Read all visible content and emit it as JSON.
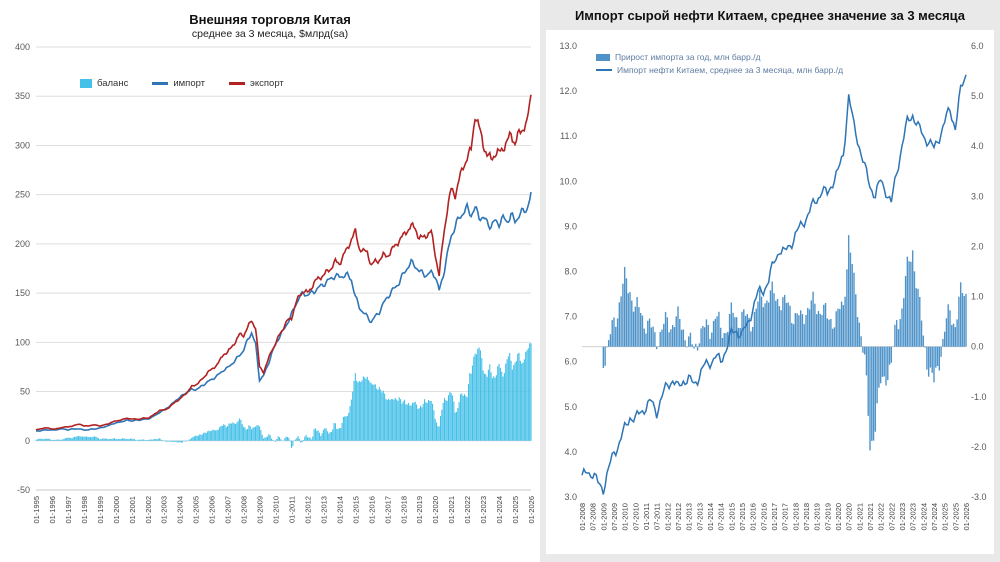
{
  "page": {
    "background": "#ffffff",
    "right_panel_background": "#e9e9e9"
  },
  "chart_data": [
    {
      "type": "bar+line",
      "title": "Внешняя торговля Китая",
      "subtitle": "среднее за 3 месяца, $млрд(sa)",
      "x_start": "01-1995",
      "x_end": "01-2026",
      "x_resolution_of_values": "quarterly",
      "ylim": [
        -50,
        400
      ],
      "y_tick_step": 50,
      "grid": "horizontal",
      "legend_position": "top-left-inside",
      "x_tick_labels": [
        "01-1995",
        "01-1996",
        "01-1997",
        "01-1998",
        "01-1999",
        "01-2000",
        "01-2001",
        "01-2002",
        "01-2003",
        "01-2004",
        "01-2005",
        "01-2006",
        "01-2007",
        "01-2008",
        "01-2009",
        "01-2010",
        "01-2011",
        "01-2012",
        "01-2013",
        "01-2014",
        "01-2015",
        "01-2016",
        "01-2017",
        "01-2018",
        "01-2019",
        "01-2020",
        "01-2021",
        "01-2022",
        "01-2023",
        "01-2024",
        "01-2025",
        "01-2026"
      ],
      "series": [
        {
          "name": "баланс",
          "type": "bar",
          "color": "#45c0e8",
          "rule": "balance = экспорт - импорт"
        },
        {
          "name": "импорт",
          "type": "line",
          "color": "#2e75b6",
          "values": [
            10,
            10,
            11,
            11,
            11,
            11,
            12,
            12,
            11,
            12,
            12,
            12,
            11,
            11,
            12,
            12,
            13,
            14,
            15,
            17,
            18,
            19,
            20,
            21,
            20,
            21,
            21,
            22,
            22,
            24,
            26,
            29,
            31,
            34,
            37,
            41,
            44,
            47,
            50,
            52,
            52,
            54,
            57,
            60,
            62,
            65,
            68,
            72,
            74,
            78,
            82,
            87,
            92,
            102,
            110,
            98,
            62,
            66,
            76,
            88,
            98,
            106,
            112,
            120,
            128,
            138,
            146,
            150,
            148,
            150,
            153,
            156,
            159,
            162,
            165,
            168,
            166,
            168,
            168,
            164,
            146,
            136,
            130,
            126,
            121,
            126,
            131,
            139,
            146,
            151,
            156,
            161,
            169,
            176,
            181,
            178,
            172,
            170,
            168,
            171,
            168,
            152,
            168,
            188,
            208,
            218,
            226,
            232,
            236,
            230,
            236,
            228,
            226,
            222,
            218,
            223,
            221,
            226,
            223,
            229,
            223,
            229,
            233,
            236,
            249
          ]
        },
        {
          "name": "экспорт",
          "type": "line",
          "color": "#b22222",
          "values": [
            11,
            12,
            13,
            13,
            12,
            12,
            13,
            14,
            14,
            15,
            16,
            17,
            15,
            15,
            16,
            16,
            15,
            16,
            17,
            19,
            20,
            21,
            22,
            23,
            22,
            22,
            22,
            23,
            23,
            25,
            28,
            31,
            31,
            33,
            36,
            40,
            42,
            46,
            50,
            55,
            57,
            60,
            64,
            70,
            72,
            76,
            81,
            88,
            90,
            95,
            101,
            108,
            107,
            115,
            122,
            115,
            75,
            70,
            80,
            92,
            98,
            108,
            115,
            122,
            125,
            138,
            148,
            152,
            150,
            156,
            162,
            166,
            168,
            172,
            176,
            182,
            180,
            188,
            195,
            205,
            212,
            196,
            192,
            192,
            178,
            182,
            184,
            188,
            188,
            193,
            198,
            204,
            208,
            214,
            218,
            216,
            206,
            206,
            210,
            212,
            190,
            168,
            205,
            235,
            255,
            250,
            265,
            278,
            288,
            295,
            332,
            318,
            302,
            290,
            286,
            292,
            292,
            298,
            303,
            312,
            302,
            312,
            318,
            322,
            352
          ]
        }
      ]
    },
    {
      "type": "bar+line",
      "title": "Импорт сырой нефти Китаем, среднее значение за 3 месяца",
      "x_start": "01-2008",
      "x_end": "01-2026",
      "x_resolution_of_values": "quarterly",
      "left_ylim": [
        3.0,
        13.0
      ],
      "right_ylim": [
        -3.0,
        6.0
      ],
      "y_tick_step": 1.0,
      "grid": "none",
      "legend_position": "top-left-inside",
      "x_tick_labels": [
        "01-2008",
        "07-2008",
        "01-2009",
        "07-2009",
        "01-2010",
        "07-2010",
        "01-2011",
        "07-2011",
        "01-2012",
        "07-2012",
        "01-2013",
        "07-2013",
        "01-2014",
        "07-2014",
        "01-2015",
        "07-2015",
        "01-2016",
        "07-2016",
        "01-2017",
        "07-2017",
        "01-2018",
        "07-2018",
        "01-2019",
        "07-2019",
        "01-2020",
        "07-2020",
        "01-2021",
        "07-2021",
        "01-2022",
        "07-2022",
        "01-2023",
        "07-2023",
        "01-2024",
        "07-2024",
        "01-2025",
        "07-2025",
        "01-2026"
      ],
      "series": [
        {
          "name": "Прирост импорта за год, млн барр./д",
          "type": "bar",
          "axis": "right",
          "color": "#4f93c9",
          "rule": "bar = line value minus line value 12 months earlier"
        },
        {
          "name": "Импорт нефти Китаем, среднее за 3 месяца, млн барр./д",
          "type": "line",
          "axis": "left",
          "color": "#2e75b6",
          "values": [
            3.4,
            3.6,
            3.5,
            3.3,
            3.2,
            3.6,
            4.0,
            4.2,
            4.5,
            4.8,
            4.7,
            4.9,
            5.0,
            5.1,
            4.9,
            5.2,
            5.5,
            5.6,
            5.4,
            5.6,
            5.6,
            5.5,
            5.7,
            5.9,
            6.0,
            6.1,
            6.0,
            6.3,
            6.6,
            6.7,
            6.6,
            6.8,
            7.2,
            7.5,
            7.6,
            7.8,
            8.2,
            8.5,
            8.4,
            8.6,
            8.8,
            9.0,
            9.2,
            9.4,
            9.6,
            9.8,
            9.7,
            10.0,
            10.2,
            10.6,
            11.9,
            11.2,
            10.8,
            10.3,
            9.9,
            9.7,
            10.0,
            9.8,
            9.5,
            10.2,
            10.8,
            11.3,
            11.5,
            11.2,
            11.0,
            10.9,
            10.7,
            11.0,
            11.3,
            11.6,
            11.2,
            12.0,
            12.4
          ]
        }
      ]
    }
  ]
}
